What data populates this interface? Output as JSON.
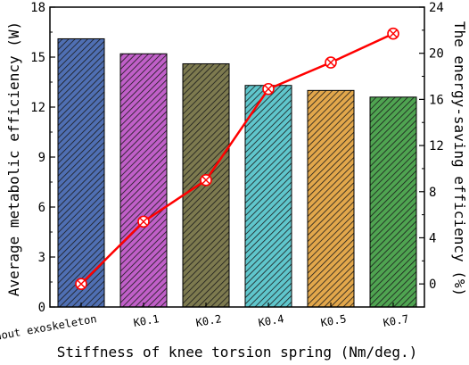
{
  "chart_data": {
    "type": "bar",
    "title": "",
    "xlabel": "Stiffness of knee torsion spring (Nm/deg.)",
    "ylabel": "Average metabolic efficiency (W)",
    "y2label": "The energy-saving efficiency (%)",
    "categories": [
      "Without exoskeleton",
      "K0.1",
      "K0.2",
      "K0.4",
      "K0.5",
      "K0.7"
    ],
    "ylim": [
      0,
      18
    ],
    "yticks": [
      0,
      3,
      6,
      9,
      12,
      15,
      18
    ],
    "y2lim": [
      -2,
      24
    ],
    "y2ticks": [
      0,
      4,
      8,
      12,
      16,
      20,
      24
    ],
    "grid": false,
    "series": [
      {
        "axis": "left",
        "type": "bar",
        "values": [
          16.1,
          15.2,
          14.6,
          13.3,
          13.0,
          12.6
        ],
        "colors": [
          "#4f6fb3",
          "#c05fc8",
          "#7d7a4f",
          "#5fc6cc",
          "#e2a74b",
          "#4fa451"
        ]
      },
      {
        "axis": "right",
        "type": "line",
        "values": [
          0,
          5.4,
          9.0,
          16.9,
          19.2,
          21.7
        ],
        "color": "#ff0000"
      }
    ]
  }
}
